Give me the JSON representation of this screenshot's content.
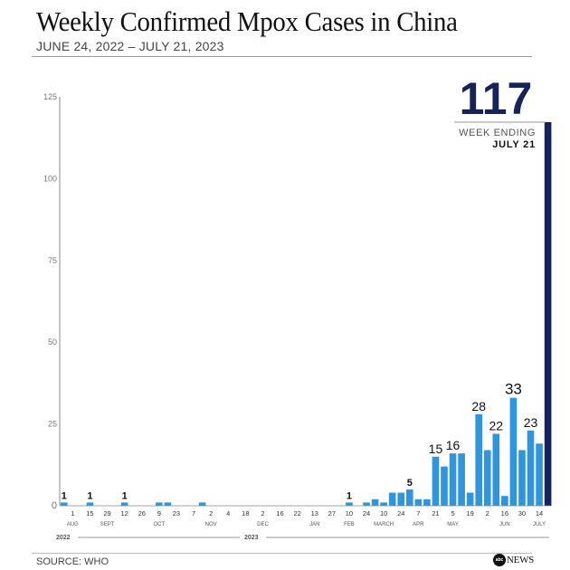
{
  "header": {
    "title": "Weekly Confirmed Mpox Cases in China",
    "subtitle": "JUNE 24, 2022 – JULY 21, 2023"
  },
  "callout": {
    "value": "117",
    "label": "WEEK ENDING",
    "date": "JULY 21"
  },
  "footer": {
    "source": "SOURCE: WHO",
    "logo_text": "NEWS",
    "logo_mark": "abc"
  },
  "colors": {
    "bar": "#2f95dc",
    "highlight_bar": "#16235a",
    "callout_text": "#16235a"
  },
  "chart_data": {
    "type": "bar",
    "title": "Weekly Confirmed Mpox Cases in China",
    "subtitle": "JUNE 24, 2022 – JULY 21, 2023",
    "xlabel": "",
    "ylabel": "",
    "ylim": [
      0,
      125
    ],
    "yticks": [
      0,
      25,
      50,
      75,
      100,
      125
    ],
    "grid": false,
    "values": [
      1,
      0,
      0,
      1,
      0,
      0,
      0,
      1,
      0,
      0,
      0,
      1,
      1,
      0,
      0,
      0,
      1,
      0,
      0,
      0,
      0,
      0,
      0,
      0,
      0,
      0,
      0,
      0,
      0,
      0,
      0,
      0,
      0,
      1,
      0,
      1,
      2,
      1,
      4,
      4,
      5,
      2,
      2,
      15,
      12,
      16,
      16,
      4,
      28,
      17,
      22,
      3,
      33,
      17,
      23,
      19,
      117
    ],
    "data_labels": [
      {
        "index": 0,
        "text": "1"
      },
      {
        "index": 3,
        "text": "1"
      },
      {
        "index": 7,
        "text": "1"
      },
      {
        "index": 33,
        "text": "1"
      },
      {
        "index": 40,
        "text": "5"
      },
      {
        "index": 43,
        "text": "15"
      },
      {
        "index": 45,
        "text": "16"
      },
      {
        "index": 48,
        "text": "28"
      },
      {
        "index": 50,
        "text": "22"
      },
      {
        "index": 52,
        "text": "33"
      },
      {
        "index": 54,
        "text": "23"
      }
    ],
    "highlight_index": 56,
    "x_tick_labels": [
      {
        "index": 1,
        "text": "1"
      },
      {
        "index": 3,
        "text": "15"
      },
      {
        "index": 5,
        "text": "29"
      },
      {
        "index": 7,
        "text": "12"
      },
      {
        "index": 9,
        "text": "26"
      },
      {
        "index": 11,
        "text": "9"
      },
      {
        "index": 13,
        "text": "23"
      },
      {
        "index": 15,
        "text": "7"
      },
      {
        "index": 17,
        "text": "2"
      },
      {
        "index": 19,
        "text": "4"
      },
      {
        "index": 21,
        "text": "18"
      },
      {
        "index": 23,
        "text": "2"
      },
      {
        "index": 25,
        "text": "16"
      },
      {
        "index": 27,
        "text": "22"
      },
      {
        "index": 29,
        "text": "13"
      },
      {
        "index": 31,
        "text": "27"
      },
      {
        "index": 33,
        "text": "10"
      },
      {
        "index": 35,
        "text": "24"
      },
      {
        "index": 37,
        "text": "10"
      },
      {
        "index": 39,
        "text": "24"
      },
      {
        "index": 41,
        "text": "7"
      },
      {
        "index": 43,
        "text": "21"
      },
      {
        "index": 45,
        "text": "5"
      },
      {
        "index": 47,
        "text": "19"
      },
      {
        "index": 49,
        "text": "2"
      },
      {
        "index": 51,
        "text": "16"
      },
      {
        "index": 53,
        "text": "30"
      },
      {
        "index": 55,
        "text": "14"
      }
    ],
    "month_labels": [
      {
        "index": 1,
        "text": "AUG"
      },
      {
        "index": 5,
        "text": "SEPT"
      },
      {
        "index": 11,
        "text": "OCT"
      },
      {
        "index": 17,
        "text": "NOV"
      },
      {
        "index": 23,
        "text": "DEC"
      },
      {
        "index": 29,
        "text": "JAN"
      },
      {
        "index": 33,
        "text": "FEB"
      },
      {
        "index": 37,
        "text": "MARCH"
      },
      {
        "index": 41,
        "text": "APR"
      },
      {
        "index": 45,
        "text": "MAY"
      },
      {
        "index": 51,
        "text": "JUN"
      },
      {
        "index": 55,
        "text": "JULY"
      }
    ],
    "year_labels": [
      {
        "index": 0,
        "text": "2022"
      },
      {
        "index": 21,
        "text": "2023"
      }
    ]
  }
}
